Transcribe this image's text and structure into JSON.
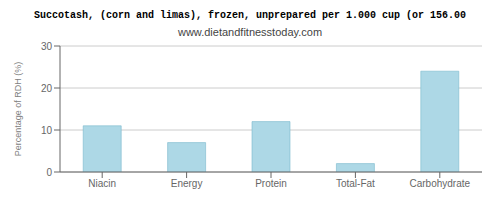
{
  "chart_data": {
    "type": "bar",
    "title": "Succotash, (corn and limas), frozen, unprepared per 1.000 cup (or 156.00",
    "subtitle": "www.dietandfitnesstoday.com",
    "categories": [
      "Niacin",
      "Energy",
      "Protein",
      "Total-Fat",
      "Carbohydrate"
    ],
    "values": [
      11.0,
      7.0,
      12.0,
      2.0,
      24.0
    ],
    "color": "#add8e6",
    "ylabel": "Percentage of RDH (%)",
    "ylim": [
      0,
      30
    ],
    "yticks": [
      0,
      10,
      20,
      30
    ],
    "grid": true
  }
}
